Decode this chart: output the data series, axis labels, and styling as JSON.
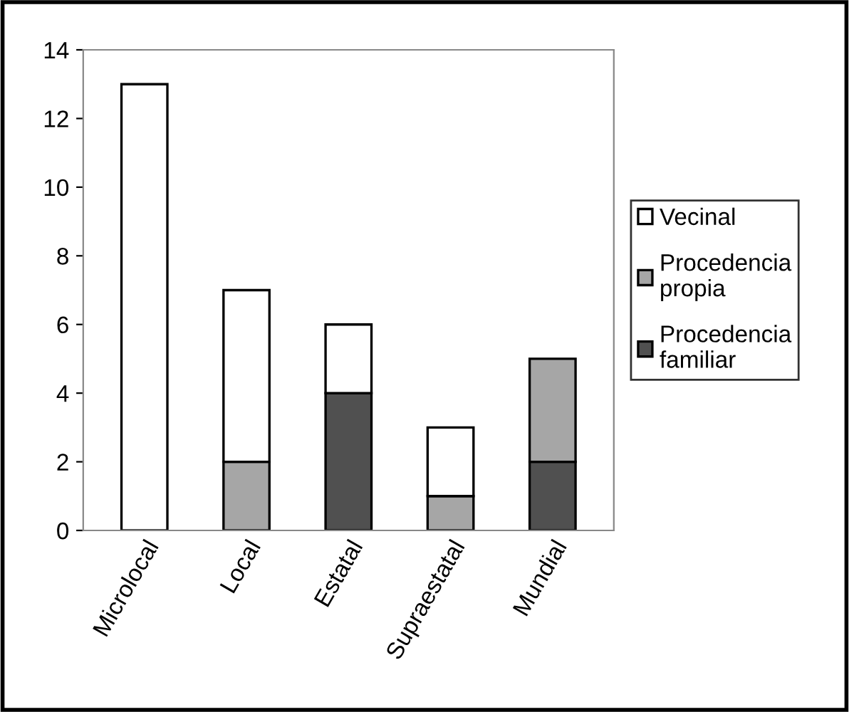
{
  "chart_data": {
    "type": "bar",
    "stacked": true,
    "categories": [
      "Microlocal",
      "Local",
      "Estatal",
      "Supraestatal",
      "Mundial"
    ],
    "series": [
      {
        "name": "Procedencia familiar",
        "color": "#505050",
        "values": [
          null,
          null,
          4,
          null,
          2
        ]
      },
      {
        "name": "Procedencia propia",
        "color": "#a6a6a6",
        "values": [
          null,
          2,
          null,
          1,
          3
        ]
      },
      {
        "name": "Vecinal",
        "color": "#ffffff",
        "values": [
          13,
          5,
          2,
          2,
          null
        ]
      }
    ],
    "ylim": [
      0,
      14
    ],
    "yticks": [
      0,
      2,
      4,
      6,
      8,
      10,
      12,
      14
    ],
    "grid": false,
    "legend": "right"
  }
}
